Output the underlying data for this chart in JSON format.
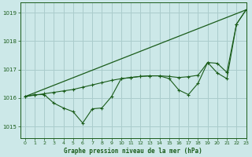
{
  "title": "Graphe pression niveau de la mer (hPa)",
  "bg_color": "#cce8e8",
  "grid_color": "#aacccc",
  "line_color": "#1a5c1a",
  "xlim": [
    -0.5,
    23
  ],
  "ylim": [
    1014.6,
    1019.35
  ],
  "yticks": [
    1015,
    1016,
    1017,
    1018,
    1019
  ],
  "xticks": [
    0,
    1,
    2,
    3,
    4,
    5,
    6,
    7,
    8,
    9,
    10,
    11,
    12,
    13,
    14,
    15,
    16,
    17,
    18,
    19,
    20,
    21,
    22,
    23
  ],
  "line1_x": [
    0,
    23
  ],
  "line1_y": [
    1016.05,
    1019.1
  ],
  "line2_x": [
    0,
    1,
    2,
    3,
    4,
    5,
    6,
    7,
    8,
    9,
    10,
    11,
    12,
    13,
    14,
    15,
    16,
    17,
    18,
    19,
    20,
    21,
    22,
    23
  ],
  "line2_y": [
    1016.05,
    1016.1,
    1016.15,
    1016.2,
    1016.25,
    1016.3,
    1016.38,
    1016.46,
    1016.54,
    1016.62,
    1016.68,
    1016.72,
    1016.76,
    1016.78,
    1016.78,
    1016.76,
    1016.72,
    1016.75,
    1016.8,
    1017.25,
    1017.22,
    1016.9,
    1018.6,
    1019.1
  ],
  "line3_x": [
    0,
    1,
    2,
    3,
    4,
    5,
    6,
    7,
    8,
    9,
    10,
    11,
    12,
    13,
    14,
    15,
    16,
    17,
    18,
    19,
    20,
    21,
    22,
    23
  ],
  "line3_y": [
    1016.05,
    1016.12,
    1016.12,
    1015.82,
    1015.65,
    1015.52,
    1015.12,
    1015.62,
    1015.65,
    1016.05,
    1016.68,
    1016.72,
    1016.76,
    1016.78,
    1016.78,
    1016.68,
    1016.28,
    1016.12,
    1016.52,
    1017.25,
    1016.88,
    1016.68,
    1018.6,
    1019.1
  ]
}
